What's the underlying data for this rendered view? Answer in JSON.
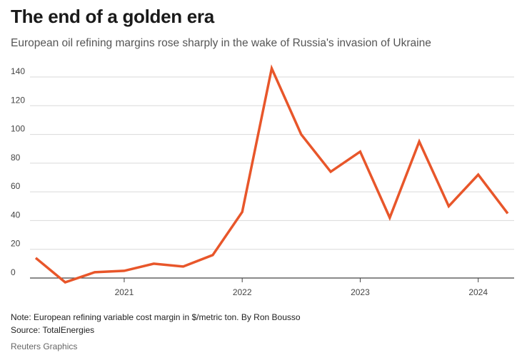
{
  "header": {
    "title": "The end of a golden era",
    "subtitle": "European oil refining margins rose sharply in the wake of Russia's invasion of Ukraine"
  },
  "footer": {
    "note": "Note: European refining variable cost margin in $/metric ton. By Ron Bousso",
    "source": "Source: TotalEnergies",
    "credit": "Reuters Graphics"
  },
  "colors": {
    "line": "#e8562a",
    "grid": "#d9d9d9",
    "axis": "#444444"
  },
  "chart_data": {
    "type": "line",
    "title": "The end of a golden era",
    "xlabel": "",
    "ylabel": "",
    "ylim": [
      0,
      140
    ],
    "xlim": [
      2020.25,
      2024.25
    ],
    "yticks": [
      0,
      20,
      40,
      60,
      80,
      100,
      120,
      140
    ],
    "xticks": [
      {
        "label": "2021",
        "value": 2021.0
      },
      {
        "label": "2022",
        "value": 2022.0
      },
      {
        "label": "2023",
        "value": 2023.0
      },
      {
        "label": "2024",
        "value": 2024.0
      }
    ],
    "series": [
      {
        "name": "European refining variable cost margin",
        "x": [
          2020.25,
          2020.5,
          2020.75,
          2021.0,
          2021.25,
          2021.5,
          2021.75,
          2022.0,
          2022.25,
          2022.5,
          2022.75,
          2023.0,
          2023.25,
          2023.5,
          2023.75,
          2024.0,
          2024.25
        ],
        "values": [
          14,
          -3,
          4,
          5,
          10,
          8,
          16,
          46,
          146,
          100,
          74,
          88,
          42,
          95,
          50,
          72,
          45
        ]
      }
    ]
  }
}
